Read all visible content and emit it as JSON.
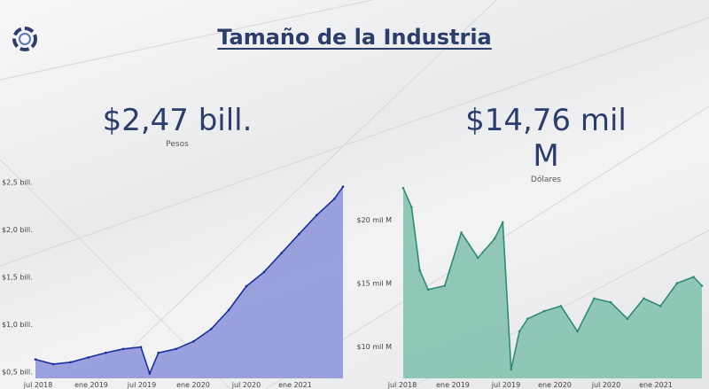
{
  "header": {
    "title": "Tamaño de la Industria"
  },
  "kpis": {
    "pesos": {
      "value": "$2,47 bill.",
      "label": "Pesos"
    },
    "dolares": {
      "value": "$14,76 mil M",
      "label": "Dólares"
    }
  },
  "colors": {
    "title": "#2b3d6b",
    "pesos_line": "#1a2fa0",
    "pesos_fill": "#8a92d8",
    "dolares_line": "#2f8a74",
    "dolares_fill": "#7fbfad"
  },
  "chart_data": [
    {
      "type": "area",
      "xlabel": "",
      "ylabel": "",
      "x_ticks": [
        "jul 2018",
        "ene 2019",
        "jul 2019",
        "ene 2020",
        "jul 2020",
        "ene 2021"
      ],
      "y_ticks": [
        {
          "label": "$0,5 bill.",
          "value": 0.5
        },
        {
          "label": "$1,0 bill.",
          "value": 1.0
        },
        {
          "label": "$1,5 bill.",
          "value": 1.5
        },
        {
          "label": "$2,0 bill.",
          "value": 2.0
        },
        {
          "label": "$2,5 bill.",
          "value": 2.5
        }
      ],
      "ylim": [
        0.43,
        2.55
      ],
      "x": [
        "2018-07",
        "2018-09",
        "2018-11",
        "2019-01",
        "2019-03",
        "2019-05",
        "2019-07",
        "2019-08",
        "2019-09",
        "2019-11",
        "2020-01",
        "2020-03",
        "2020-05",
        "2020-07",
        "2020-09",
        "2020-11",
        "2021-01",
        "2021-03",
        "2021-05",
        "2021-06"
      ],
      "series": [
        {
          "values": [
            0.63,
            0.58,
            0.6,
            0.65,
            0.7,
            0.74,
            0.76,
            0.48,
            0.7,
            0.74,
            0.82,
            0.95,
            1.15,
            1.4,
            1.55,
            1.75,
            1.95,
            2.15,
            2.32,
            2.45
          ]
        }
      ]
    },
    {
      "type": "area",
      "xlabel": "",
      "ylabel": "",
      "x_ticks": [
        "jul 2018",
        "ene 2019",
        "jul 2019",
        "ene 2020",
        "jul 2020",
        "ene 2021"
      ],
      "y_ticks": [
        {
          "label": "$10 mil M",
          "value": 10
        },
        {
          "label": "$15 mil M",
          "value": 15
        },
        {
          "label": "$20 mil M",
          "value": 20
        }
      ],
      "ylim": [
        7.5,
        22.8
      ],
      "x": [
        "2018-06",
        "2018-07",
        "2018-08",
        "2018-09",
        "2018-11",
        "2019-01",
        "2019-03",
        "2019-05",
        "2019-06",
        "2019-07",
        "2019-08",
        "2019-09",
        "2019-11",
        "2020-01",
        "2020-03",
        "2020-05",
        "2020-07",
        "2020-09",
        "2020-11",
        "2021-01",
        "2021-03",
        "2021-05",
        "2021-06"
      ],
      "series": [
        {
          "values": [
            22.5,
            21.0,
            16.0,
            14.5,
            14.8,
            19.0,
            17.0,
            18.5,
            19.8,
            8.2,
            11.2,
            12.2,
            12.8,
            13.2,
            11.2,
            13.8,
            13.5,
            12.2,
            13.8,
            13.2,
            15.0,
            15.5,
            14.8
          ]
        }
      ]
    }
  ]
}
